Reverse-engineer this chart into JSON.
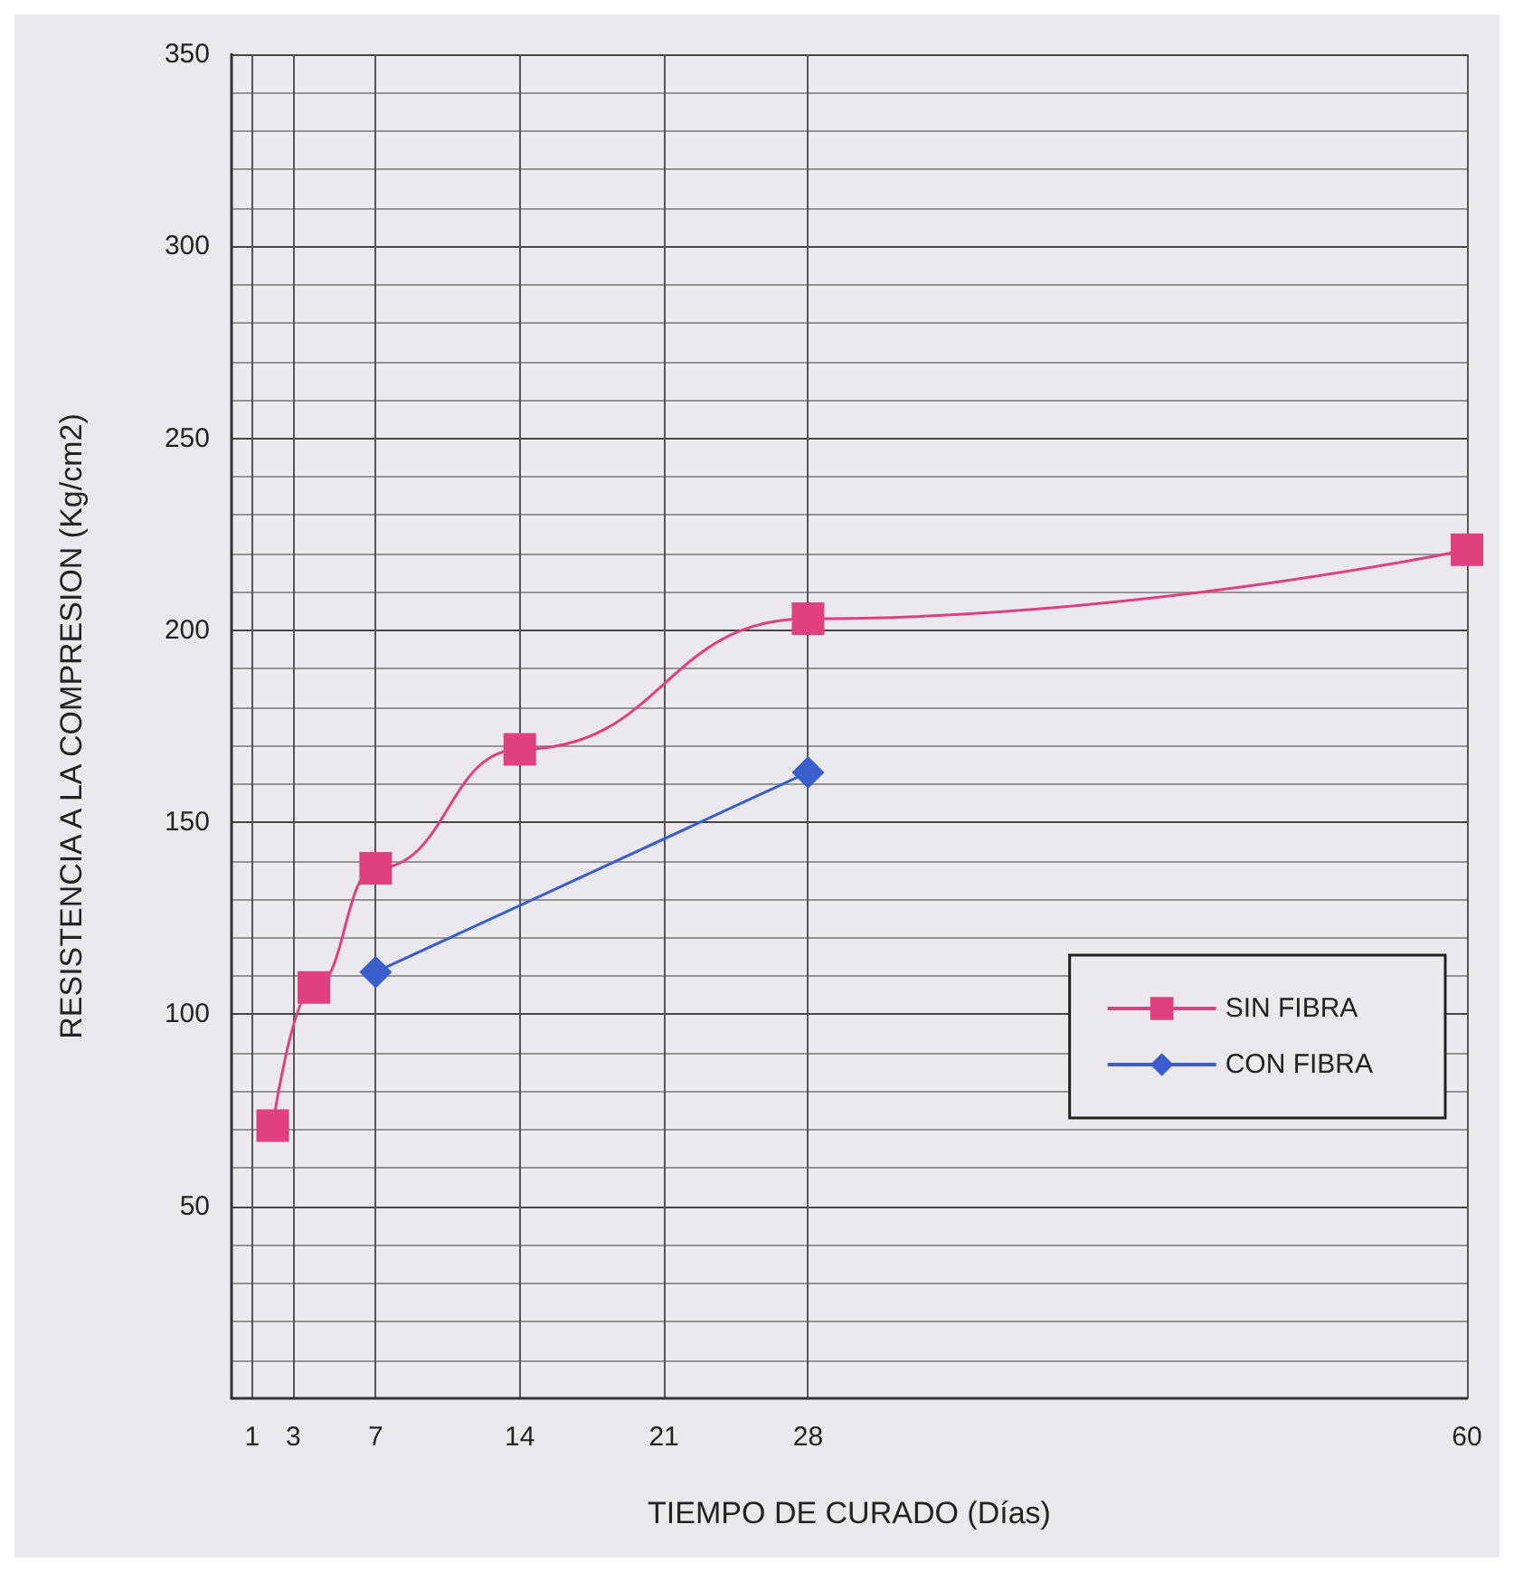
{
  "chart_data": {
    "type": "line",
    "xlabel": "TIEMPO DE CURADO (Días)",
    "ylabel": "RESISTENCIA A LA COMPRESION (Kg/cm2)",
    "xlim": [
      0,
      60
    ],
    "xticks": [
      1,
      3,
      7,
      14,
      21,
      28,
      60
    ],
    "ylim": [
      0,
      350
    ],
    "yticks": [
      50,
      100,
      150,
      200,
      250,
      300,
      350
    ],
    "grid": true,
    "legend": "right",
    "line_style": "solid",
    "series": [
      {
        "name": "SIN FIBRA",
        "color": "#e0407f",
        "marker": "square",
        "x": [
          2,
          4,
          7,
          14,
          28,
          60
        ],
        "values": [
          71,
          107,
          138,
          169,
          203,
          221
        ]
      },
      {
        "name": "CON FIBRA",
        "color": "#3a5fcd",
        "marker": "diamond",
        "x": [
          7,
          28
        ],
        "values": [
          111,
          163
        ]
      }
    ]
  }
}
